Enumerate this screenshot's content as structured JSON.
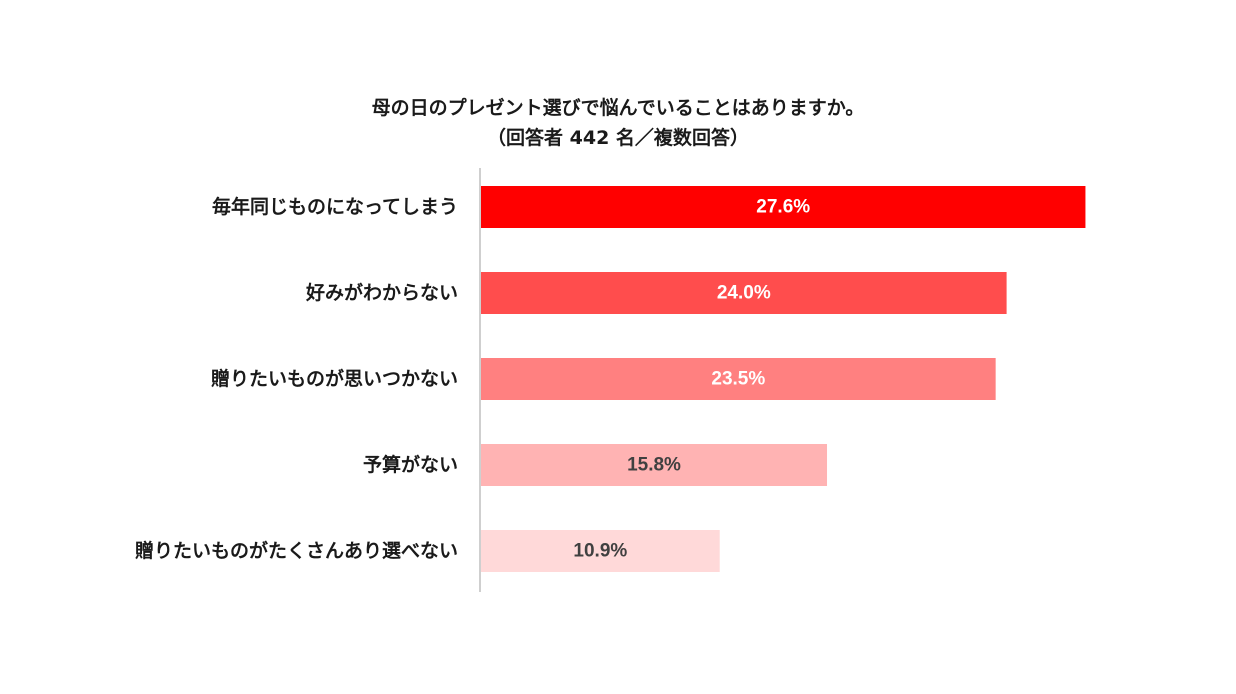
{
  "chart_data": {
    "type": "bar",
    "orientation": "horizontal",
    "title": "母の日のプレゼント選びで悩んでいることはありますか。",
    "subtitle": "（回答者 442 名／複数回答）",
    "categories": [
      "毎年同じものになってしまう",
      "好みがわからない",
      "贈りたいものが思いつかない",
      "予算がない",
      "贈りたいものがたくさんあり選べない"
    ],
    "values": [
      27.6,
      24.0,
      23.5,
      15.8,
      10.9
    ],
    "data_labels": [
      "27.6%",
      "24.0%",
      "23.5%",
      "15.8%",
      "10.9%"
    ],
    "unit": "%",
    "xlim": [
      0,
      30
    ],
    "grid": false,
    "legend": "none",
    "bar_colors": [
      "#ff0000",
      "#ff4d4d",
      "#ff8080",
      "#ffb3b3",
      "#ffd9d9"
    ],
    "label_colors": [
      "#ffffff",
      "#ffffff",
      "#ffffff",
      "#404040",
      "#404040"
    ]
  }
}
